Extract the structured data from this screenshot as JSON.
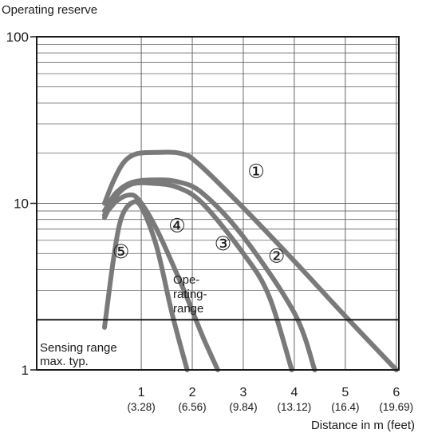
{
  "chart_data": {
    "type": "line",
    "title": "",
    "ylabel": "Operating reserve",
    "xlabel": "Distance in m (feet)",
    "yscale": "log",
    "ylim": [
      1,
      100
    ],
    "xlim": [
      -1.05,
      6.05
    ],
    "y_ticks": [
      {
        "value": 1,
        "label": "1"
      },
      {
        "value": 10,
        "label": "10"
      },
      {
        "value": 100,
        "label": "100"
      }
    ],
    "x_ticks": [
      {
        "value": 1,
        "label": "1",
        "sublabel": "(3.28)"
      },
      {
        "value": 2,
        "label": "2",
        "sublabel": "(6.56)"
      },
      {
        "value": 3,
        "label": "3",
        "sublabel": "(9.84)"
      },
      {
        "value": 4,
        "label": "4",
        "sublabel": "(13.12)"
      },
      {
        "value": 5,
        "label": "5",
        "sublabel": "(16.4)"
      },
      {
        "value": 6,
        "label": "6",
        "sublabel": "(19.69)"
      }
    ],
    "grid": true,
    "series": [
      {
        "name": "①",
        "points": [
          [
            0.28,
            10.0
          ],
          [
            0.45,
            13.5
          ],
          [
            0.65,
            17.5
          ],
          [
            0.9,
            19.8
          ],
          [
            1.3,
            20.2
          ],
          [
            1.75,
            20.0
          ],
          [
            2.1,
            17.5
          ],
          [
            3.0,
            9.4
          ],
          [
            4.0,
            4.5
          ],
          [
            5.0,
            2.1
          ],
          [
            6.0,
            1.0
          ]
        ]
      },
      {
        "name": "②",
        "points": [
          [
            0.28,
            9.0
          ],
          [
            0.5,
            11.5
          ],
          [
            0.8,
            13.3
          ],
          [
            1.2,
            13.8
          ],
          [
            1.7,
            13.5
          ],
          [
            2.2,
            11.5
          ],
          [
            3.0,
            6.3
          ],
          [
            4.0,
            2.2
          ],
          [
            4.4,
            1.0
          ]
        ]
      },
      {
        "name": "③",
        "points": [
          [
            0.28,
            8.2
          ],
          [
            0.5,
            11.0
          ],
          [
            0.8,
            13.0
          ],
          [
            1.2,
            13.2
          ],
          [
            1.7,
            12.5
          ],
          [
            2.2,
            10.0
          ],
          [
            3.0,
            5.0
          ],
          [
            3.5,
            2.8
          ],
          [
            3.95,
            1.0
          ]
        ]
      },
      {
        "name": "④",
        "points": [
          [
            0.28,
            8.5
          ],
          [
            0.5,
            10.2
          ],
          [
            0.75,
            11.2
          ],
          [
            0.95,
            10.5
          ],
          [
            1.3,
            7.0
          ],
          [
            1.8,
            3.2
          ],
          [
            2.2,
            1.6
          ],
          [
            2.5,
            1.0
          ]
        ]
      },
      {
        "name": "⑤",
        "points": [
          [
            0.28,
            1.8
          ],
          [
            0.45,
            4.5
          ],
          [
            0.6,
            8.0
          ],
          [
            0.8,
            10.0
          ],
          [
            1.0,
            9.5
          ],
          [
            1.3,
            5.5
          ],
          [
            1.6,
            2.2
          ],
          [
            1.9,
            1.0
          ]
        ]
      }
    ],
    "series_labels": [
      {
        "text": "①",
        "x": 3.25,
        "y": 15.5
      },
      {
        "text": "②",
        "x": 3.65,
        "y": 4.8
      },
      {
        "text": "③",
        "x": 2.6,
        "y": 5.7
      },
      {
        "text": "④",
        "x": 1.7,
        "y": 7.3
      },
      {
        "text": "⑤",
        "x": 0.6,
        "y": 5.1
      }
    ],
    "threshold": {
      "y": 2,
      "label": "Operating range",
      "label_lines": [
        "Ope-",
        "rating-",
        "range"
      ]
    },
    "annotations": [
      {
        "id": "sensing",
        "lines": [
          "Sensing range",
          "max. typ."
        ]
      }
    ],
    "colors": {
      "curve": "#7a7a7a",
      "grid": "#666666",
      "axis": "#1a1a1a"
    }
  }
}
